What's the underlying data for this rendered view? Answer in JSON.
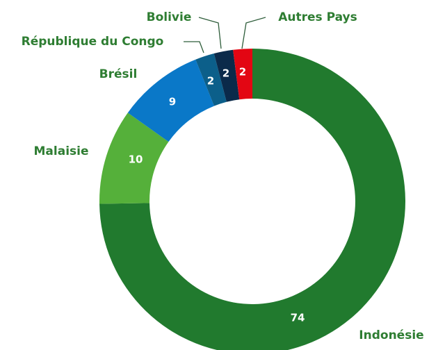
{
  "chart_data": {
    "type": "donut",
    "categories": [
      "Indonésie",
      "Malaisie",
      "Brésil",
      "République du Congo",
      "Bolivie",
      "Autres Pays"
    ],
    "values": [
      74,
      10,
      9,
      2,
      2,
      2
    ],
    "colors": [
      "#217a2e",
      "#55b03a",
      "#0a78c8",
      "#0c5f8a",
      "#0b2a4a",
      "#e30613"
    ]
  }
}
